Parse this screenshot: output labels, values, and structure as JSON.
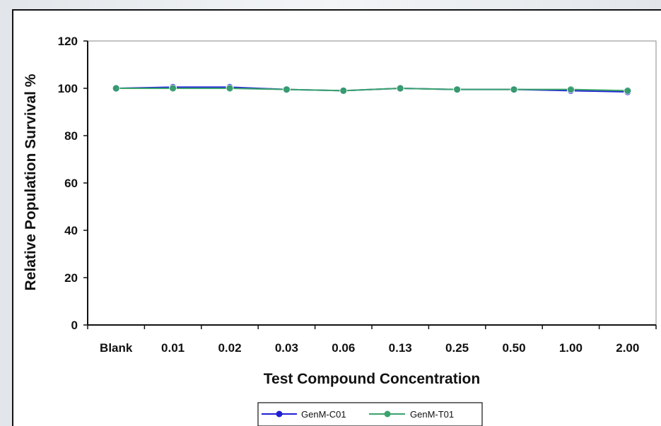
{
  "chart_data": {
    "type": "line",
    "title": "",
    "xlabel": "Test Compound Concentration",
    "ylabel": "Relative Population Survival %",
    "ylim": [
      0,
      120
    ],
    "yticks": [
      "0",
      "20",
      "40",
      "60",
      "80",
      "100",
      "120"
    ],
    "categories": [
      "Blank",
      "0.01",
      "0.02",
      "0.03",
      "0.06",
      "0.13",
      "0.25",
      "0.50",
      "1.00",
      "2.00"
    ],
    "grid": false,
    "legend_position": "bottom",
    "series": [
      {
        "name": "GenM-C01",
        "color": "#1f1fd6",
        "values": [
          100,
          100.5,
          100.5,
          99.5,
          99,
          100,
          99.5,
          99.5,
          99,
          98.5
        ]
      },
      {
        "name": "GenM-T01",
        "color": "#3aa36b",
        "values": [
          100,
          100,
          100,
          99.5,
          99,
          100,
          99.5,
          99.5,
          99.5,
          99
        ]
      }
    ]
  }
}
